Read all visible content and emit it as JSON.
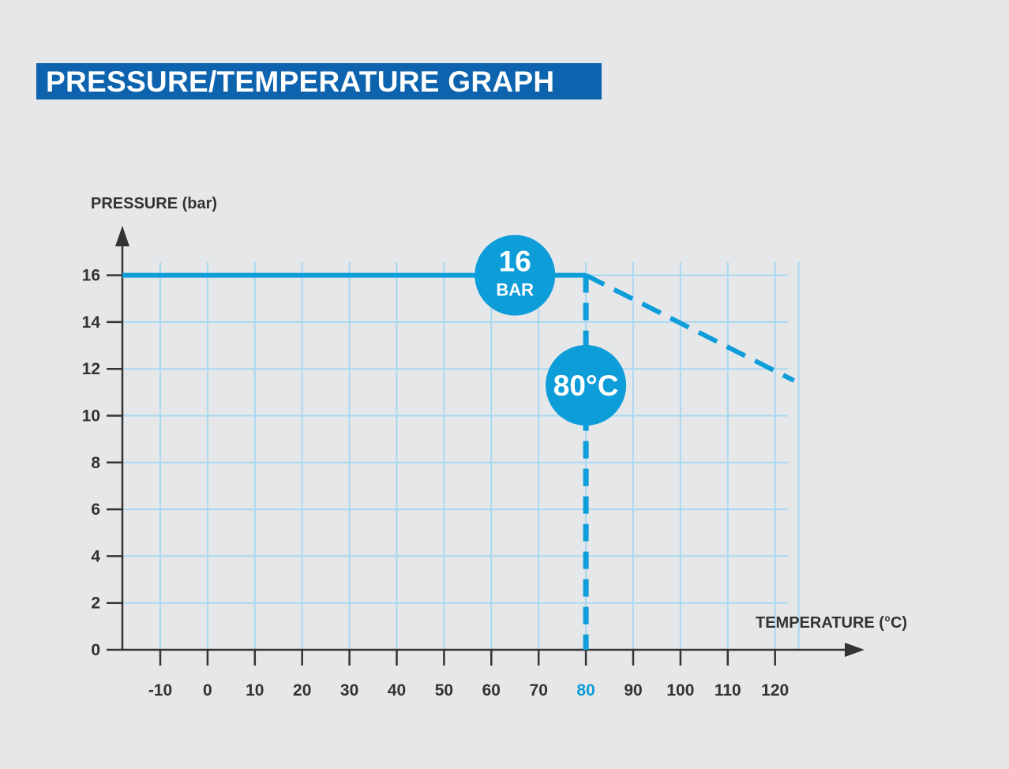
{
  "title": "PRESSURE/TEMPERATURE GRAPH",
  "colors": {
    "brand": "#0d63ad",
    "accent": "#0d9dd9",
    "grid": "#a8d8f2",
    "axis": "#333333",
    "background": "#e6e7e9"
  },
  "chart_data": {
    "type": "line",
    "title": "PRESSURE/TEMPERATURE GRAPH",
    "xlabel": "TEMPERATURE (°C)",
    "ylabel": "PRESSURE (bar)",
    "x_ticks": [
      -10,
      0,
      10,
      20,
      30,
      40,
      50,
      60,
      70,
      80,
      90,
      100,
      110,
      120
    ],
    "y_ticks": [
      0,
      2,
      4,
      6,
      8,
      10,
      12,
      14,
      16
    ],
    "xlim": [
      -10,
      120
    ],
    "ylim": [
      0,
      16
    ],
    "grid": true,
    "series": [
      {
        "style": "solid",
        "x": [
          -18,
          80
        ],
        "y": [
          16,
          16
        ]
      },
      {
        "style": "dashed",
        "x": [
          80,
          124
        ],
        "y": [
          16,
          11.5
        ]
      }
    ],
    "reference_lines": [
      {
        "axis": "x",
        "value": 80,
        "style": "dashed"
      }
    ],
    "highlighted_tick": "80",
    "annotations": [
      {
        "text": "16",
        "subtext": "BAR",
        "x": 65,
        "y": 16
      },
      {
        "text": "80°C",
        "x": 80,
        "y": 11.3
      }
    ]
  }
}
